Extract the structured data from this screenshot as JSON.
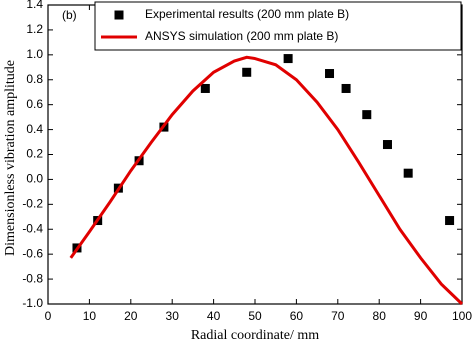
{
  "chart_data": {
    "type": "scatter",
    "annotation": "(b)",
    "xlabel": "Radial coordinate/ mm",
    "ylabel": "Dimensionless vibration amplitude",
    "xlim": [
      0,
      100
    ],
    "xticks": [
      0,
      10,
      20,
      30,
      40,
      50,
      60,
      70,
      80,
      90,
      100
    ],
    "ylim": [
      -1,
      1.4
    ],
    "yticks": [
      {
        "value": -1,
        "label": "-1.0"
      },
      -0.8,
      -0.6,
      -0.4,
      -0.2,
      {
        "value": 0,
        "label": "0.0"
      },
      0.2,
      0.4,
      0.6,
      0.8,
      {
        "value": 1,
        "label": "1.0"
      },
      1.2,
      1.4
    ],
    "legend": "upper right",
    "series": [
      {
        "name": "Experimental results (200 mm plate B)",
        "type": "scatter",
        "color": "#000000",
        "x": [
          7,
          12,
          17,
          22,
          28,
          38,
          48,
          58,
          68,
          72,
          77,
          82,
          87,
          97
        ],
        "values": [
          -0.55,
          -0.33,
          -0.07,
          0.15,
          0.42,
          0.73,
          0.86,
          0.97,
          0.85,
          0.73,
          0.52,
          0.28,
          0.05,
          -0.33
        ]
      },
      {
        "name": "ANSYS simulation (200 mm plate B)",
        "type": "line",
        "color": "#e00000",
        "x": [
          5.5,
          10,
          15,
          20,
          25,
          30,
          35,
          40,
          45,
          48,
          50,
          55,
          60,
          65,
          70,
          75,
          80,
          85,
          90,
          95,
          100
        ],
        "values": [
          -0.63,
          -0.42,
          -0.18,
          0.07,
          0.3,
          0.52,
          0.71,
          0.86,
          0.95,
          0.98,
          0.97,
          0.92,
          0.8,
          0.62,
          0.4,
          0.14,
          -0.13,
          -0.4,
          -0.63,
          -0.84,
          -1
        ]
      }
    ]
  }
}
